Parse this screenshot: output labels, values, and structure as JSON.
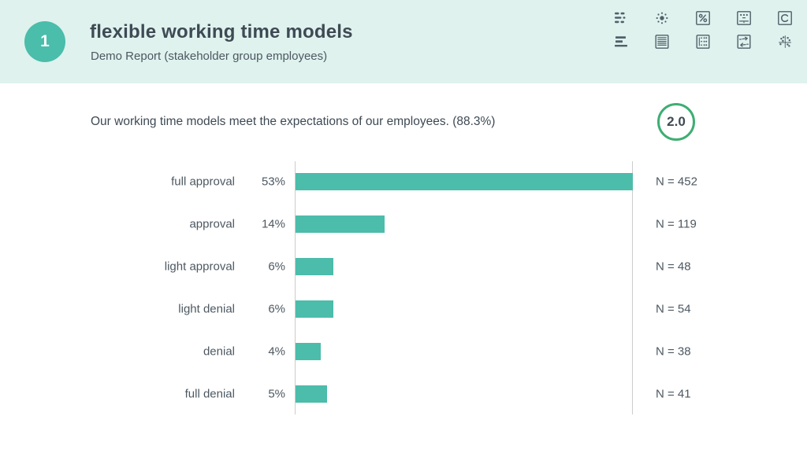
{
  "header": {
    "page_number": "1",
    "title": "flexible working time models",
    "subtitle": "Demo Report (stakeholder group employees)"
  },
  "toolbar": {
    "icons": [
      "distribution-list-icon",
      "radial-dots-icon",
      "percent-icon",
      "mean-values-icon",
      "letter-c-icon",
      "horizontal-bars-icon",
      "document-lines-icon",
      "item-list-icon",
      "compare-arrows-icon",
      "scatter-plot-icon"
    ]
  },
  "question": {
    "text": "Our working time models meet the expectations of our employees. (88.3%)",
    "score": "2.0"
  },
  "chart_data": {
    "type": "bar",
    "orientation": "horizontal",
    "categories": [
      "full approval",
      "approval",
      "light approval",
      "light denial",
      "denial",
      "full denial"
    ],
    "values": [
      53,
      14,
      6,
      6,
      4,
      5
    ],
    "value_labels": [
      "53%",
      "14%",
      "6%",
      "6%",
      "4%",
      "5%"
    ],
    "n_labels": [
      "N = 452",
      "N = 119",
      "N = 48",
      "N = 54",
      "N = 38",
      "N = 41"
    ],
    "n_values": [
      452,
      119,
      48,
      54,
      38,
      41
    ],
    "xlim": [
      0,
      53
    ],
    "grid": "off",
    "legend": "none",
    "bar_color": "#4cbcab"
  },
  "colors": {
    "header_bg": "#dff2ee",
    "accent_teal": "#4abdab",
    "bar": "#4cbcab",
    "score_ring": "#3eae73",
    "text_dark": "#3e4a54",
    "text_gray": "#4d5861",
    "axis_line": "#cccccc",
    "icon": "#51606a"
  }
}
